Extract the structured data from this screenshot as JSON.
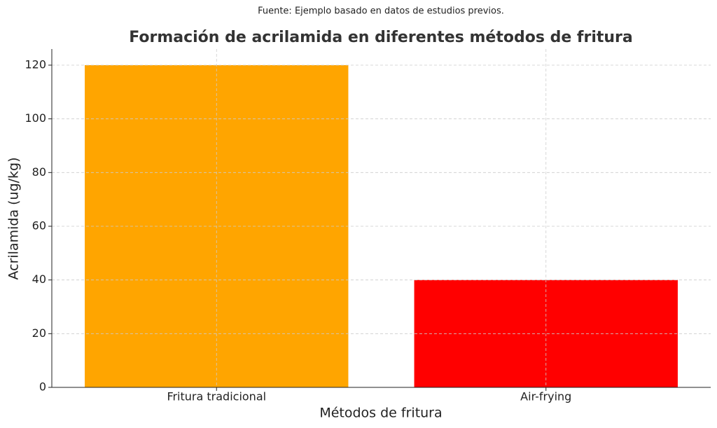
{
  "chart_data": {
    "type": "bar",
    "subtitle": "Fuente: Ejemplo basado en datos de estudios previos.",
    "title": "Formación de acrilamida en diferentes métodos de fritura",
    "x_label": "Métodos de fritura",
    "y_label": "Acrilamida (ug/kg)",
    "categories": [
      "Fritura tradicional",
      "Air-frying"
    ],
    "values": [
      120,
      40
    ],
    "colors": [
      "#ffa500",
      "#ff0000"
    ],
    "ylim": [
      0,
      126
    ],
    "yticks": [
      0,
      20,
      40,
      60,
      80,
      100,
      120
    ],
    "grid": true
  }
}
